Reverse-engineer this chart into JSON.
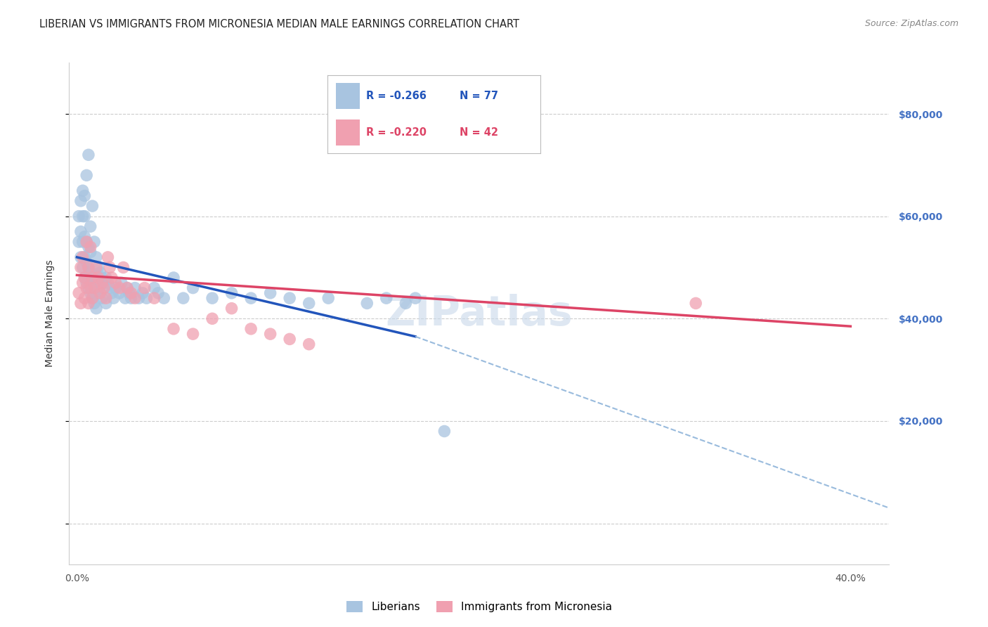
{
  "title": "LIBERIAN VS IMMIGRANTS FROM MICRONESIA MEDIAN MALE EARNINGS CORRELATION CHART",
  "source": "Source: ZipAtlas.com",
  "ylabel": "Median Male Earnings",
  "xlabel_ticks": [
    "0.0%",
    "",
    "",
    "",
    "40.0%"
  ],
  "xlabel_vals": [
    0.0,
    0.1,
    0.2,
    0.3,
    0.4
  ],
  "ylabel_ticks": [
    0,
    20000,
    40000,
    60000,
    80000
  ],
  "ylabel_labels": [
    "",
    "$20,000",
    "$40,000",
    "$60,000",
    "$80,000"
  ],
  "ylim": [
    -8000,
    90000
  ],
  "xlim": [
    -0.004,
    0.42
  ],
  "background_color": "#ffffff",
  "grid_color": "#cccccc",
  "liberian_color": "#a8c4e0",
  "micronesia_color": "#f0a0b0",
  "liberian_line_color": "#2255bb",
  "micronesia_line_color": "#dd4466",
  "dashed_line_color": "#99bbdd",
  "R_liberian": "-0.266",
  "N_liberian": "77",
  "R_micronesia": "-0.220",
  "N_micronesia": "42",
  "legend_label_1": "Liberians",
  "legend_label_2": "Immigrants from Micronesia",
  "liberian_x": [
    0.001,
    0.001,
    0.002,
    0.002,
    0.002,
    0.003,
    0.003,
    0.003,
    0.003,
    0.004,
    0.004,
    0.004,
    0.004,
    0.004,
    0.005,
    0.005,
    0.005,
    0.005,
    0.006,
    0.006,
    0.006,
    0.006,
    0.007,
    0.007,
    0.007,
    0.007,
    0.008,
    0.008,
    0.008,
    0.009,
    0.009,
    0.009,
    0.01,
    0.01,
    0.01,
    0.011,
    0.011,
    0.012,
    0.012,
    0.013,
    0.013,
    0.014,
    0.015,
    0.015,
    0.016,
    0.017,
    0.018,
    0.019,
    0.02,
    0.022,
    0.023,
    0.025,
    0.026,
    0.027,
    0.028,
    0.03,
    0.032,
    0.034,
    0.036,
    0.04,
    0.042,
    0.045,
    0.05,
    0.055,
    0.06,
    0.07,
    0.08,
    0.09,
    0.1,
    0.11,
    0.12,
    0.13,
    0.15,
    0.16,
    0.17,
    0.175,
    0.19
  ],
  "liberian_y": [
    55000,
    60000,
    52000,
    57000,
    63000,
    50000,
    55000,
    60000,
    65000,
    48000,
    52000,
    56000,
    60000,
    64000,
    47000,
    51000,
    55000,
    68000,
    46000,
    50000,
    54000,
    72000,
    45000,
    49000,
    53000,
    58000,
    44000,
    48000,
    62000,
    43000,
    47000,
    55000,
    42000,
    47000,
    52000,
    46000,
    50000,
    45000,
    49000,
    44000,
    48000,
    47000,
    43000,
    48000,
    47000,
    46000,
    45000,
    44000,
    46000,
    45000,
    47000,
    44000,
    46000,
    45000,
    44000,
    46000,
    44000,
    45000,
    44000,
    46000,
    45000,
    44000,
    48000,
    44000,
    46000,
    44000,
    45000,
    44000,
    45000,
    44000,
    43000,
    44000,
    43000,
    44000,
    43000,
    44000,
    18000
  ],
  "micronesia_x": [
    0.001,
    0.002,
    0.002,
    0.003,
    0.003,
    0.004,
    0.004,
    0.005,
    0.005,
    0.006,
    0.006,
    0.007,
    0.007,
    0.008,
    0.008,
    0.009,
    0.01,
    0.011,
    0.012,
    0.013,
    0.014,
    0.015,
    0.016,
    0.017,
    0.018,
    0.02,
    0.022,
    0.024,
    0.026,
    0.028,
    0.03,
    0.035,
    0.04,
    0.05,
    0.06,
    0.07,
    0.08,
    0.09,
    0.1,
    0.11,
    0.12,
    0.32
  ],
  "micronesia_y": [
    45000,
    43000,
    50000,
    47000,
    52000,
    44000,
    48000,
    46000,
    55000,
    43000,
    50000,
    46000,
    54000,
    48000,
    44000,
    46000,
    50000,
    48000,
    45000,
    47000,
    46000,
    44000,
    52000,
    50000,
    48000,
    47000,
    46000,
    50000,
    46000,
    45000,
    44000,
    46000,
    44000,
    38000,
    37000,
    40000,
    42000,
    38000,
    37000,
    36000,
    35000,
    43000
  ],
  "blue_line_x0": 0.0,
  "blue_line_y0": 52000,
  "blue_line_x1": 0.175,
  "blue_line_y1": 36500,
  "pink_line_x0": 0.0,
  "pink_line_y0": 48500,
  "pink_line_x1": 0.4,
  "pink_line_y1": 38500,
  "dashed_line_x0": 0.175,
  "dashed_line_y0": 36500,
  "dashed_line_x1": 0.42,
  "dashed_line_y1": 3000,
  "title_fontsize": 10.5,
  "axis_label_fontsize": 10,
  "tick_fontsize": 10,
  "source_fontsize": 9,
  "watermark_fontsize": 42,
  "ytick_color": "#4472c4",
  "xtick_color": "#555555"
}
